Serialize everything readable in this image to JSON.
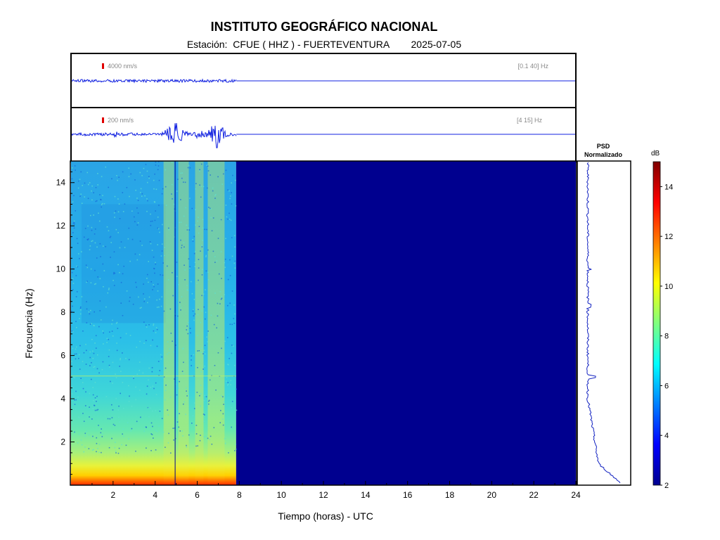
{
  "header": {
    "title": "INSTITUTO GEOGRÁFICO NACIONAL",
    "subtitle": "Estación:  CFUE ( HHZ ) - FUERTEVENTURA        2025-07-05"
  },
  "traces": [
    {
      "scale_label": "4000 nm/s",
      "band_label": "[0.1 40] Hz"
    },
    {
      "scale_label": "200 nm/s",
      "band_label": "[4 15] Hz"
    }
  ],
  "psd": {
    "title_line1": "PSD",
    "title_line2": "Normalizado"
  },
  "colorbar": {
    "unit": "dB",
    "ticks": [
      "2",
      "4",
      "6",
      "8",
      "10",
      "12",
      "14"
    ],
    "range": [
      2,
      15
    ]
  },
  "chart_data": {
    "type": "heatmap",
    "title": "",
    "xlabel": "Tiempo (horas) - UTC",
    "ylabel": "Frecuencia  (Hz)",
    "xlim": [
      0,
      24
    ],
    "ylim": [
      0,
      15
    ],
    "x_ticks": [
      "2",
      "4",
      "6",
      "8",
      "10",
      "12",
      "14",
      "16",
      "18",
      "20",
      "22",
      "24"
    ],
    "y_ticks": [
      "2",
      "4",
      "6",
      "8",
      "10",
      "12",
      "14"
    ],
    "data_end_hour": 7.85,
    "gap_hour": 4.95,
    "colormap": "jet",
    "description_levels_db": [
      {
        "freq_range_hz": [
          0,
          0.5
        ],
        "level_db": 12
      },
      {
        "freq_range_hz": [
          0.5,
          1.5
        ],
        "level_db": 9
      },
      {
        "freq_range_hz": [
          1.5,
          4
        ],
        "level_db": 7.5
      },
      {
        "freq_range_hz": [
          4,
          15
        ],
        "level_db": 6
      }
    ]
  }
}
